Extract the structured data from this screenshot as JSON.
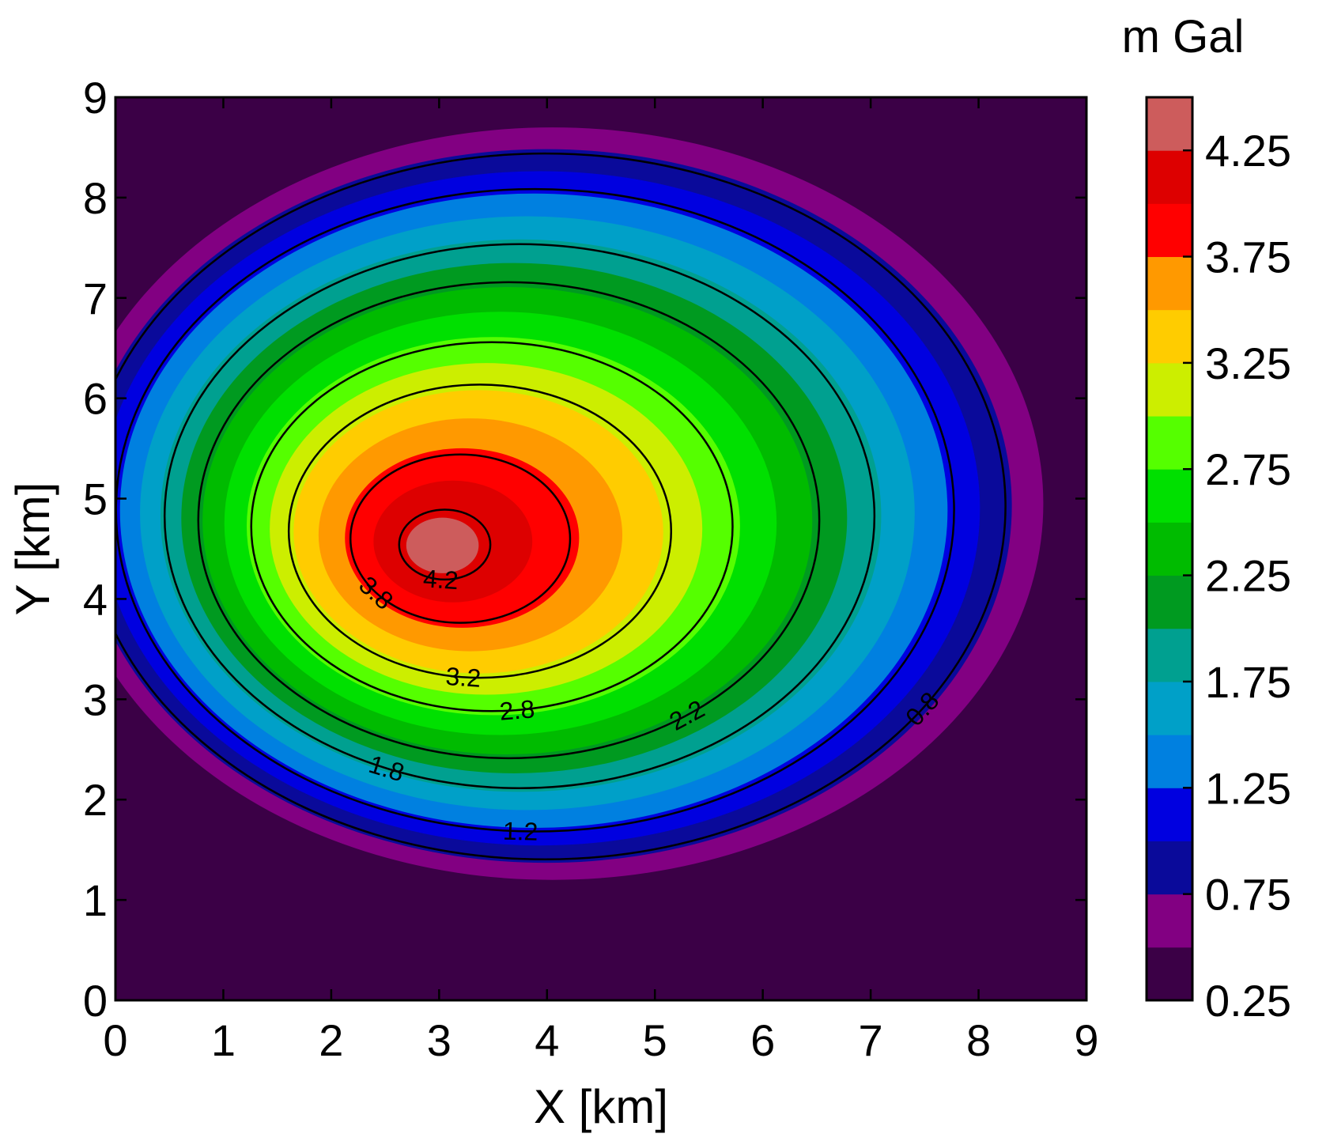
{
  "chart_data": {
    "type": "contour",
    "xlabel": "X [km]",
    "ylabel": "Y [km]",
    "xlim": [
      0,
      9
    ],
    "ylim": [
      0,
      9
    ],
    "x_ticks": [
      "0",
      "1",
      "2",
      "3",
      "4",
      "5",
      "6",
      "7",
      "8",
      "9"
    ],
    "y_ticks": [
      "0",
      "1",
      "2",
      "3",
      "4",
      "5",
      "6",
      "7",
      "8",
      "9"
    ],
    "grid": false,
    "anomaly": {
      "center_x": 2.95,
      "center_y": 4.5,
      "peak_value": 4.4,
      "contour_extent_x": [
        -0.5,
        8.6
      ],
      "contour_extent_y": [
        1.2,
        8.7
      ]
    },
    "fill_levels": [
      0.25,
      0.5,
      0.75,
      1.0,
      1.25,
      1.5,
      1.75,
      2.0,
      2.25,
      2.5,
      2.75,
      3.0,
      3.25,
      3.5,
      3.75,
      4.0,
      4.25,
      4.5
    ],
    "fill_colors": [
      "#3b0046",
      "#820082",
      "#0a0a9a",
      "#0000e0",
      "#0080e0",
      "#00a0c8",
      "#00a090",
      "#009a20",
      "#00bb00",
      "#00e000",
      "#55ff00",
      "#ccee00",
      "#ffcc00",
      "#ff9900",
      "#ff0000",
      "#dd0000",
      "#cd5c5c"
    ],
    "contour_lines": [
      {
        "level": 0.8,
        "label": "0.8"
      },
      {
        "level": 1.2,
        "label": "1.2"
      },
      {
        "level": 1.8,
        "label": "1.8"
      },
      {
        "level": 2.2,
        "label": "2.2"
      },
      {
        "level": 2.8,
        "label": "2.8"
      },
      {
        "level": 3.2,
        "label": "3.2"
      },
      {
        "level": 3.8,
        "label": "3.8"
      },
      {
        "level": 4.2,
        "label": "4.2"
      }
    ],
    "colorbar": {
      "unit": "m Gal",
      "ticks": [
        "0.25",
        "0.75",
        "1.25",
        "1.75",
        "2.25",
        "2.75",
        "3.25",
        "3.75",
        "4.25"
      ],
      "tick_values": [
        0.25,
        0.75,
        1.25,
        1.75,
        2.25,
        2.75,
        3.25,
        3.75,
        4.25
      ]
    }
  }
}
